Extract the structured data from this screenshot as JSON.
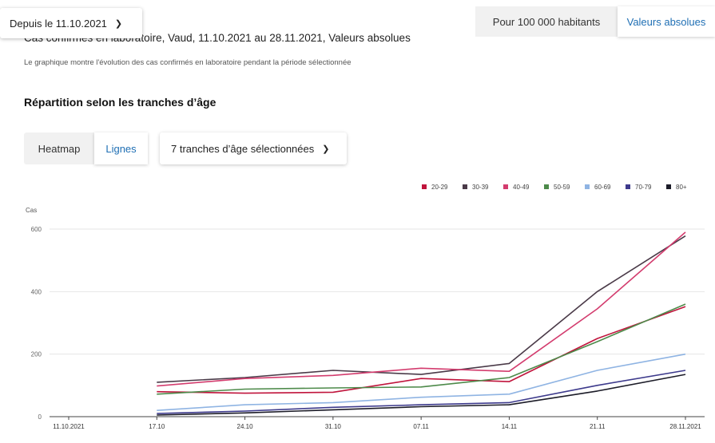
{
  "filters": {
    "date_filter_label": "Depuis le 11.10.2021",
    "mode_per100k_label": "Pour 100 000 habitants",
    "mode_absolute_label": "Valeurs absolues"
  },
  "chart_header": {
    "title": "Cas confirmés en laboratoire, Vaud, 11.10.2021 au 28.11.2021, Valeurs absolues",
    "description": "Le graphique montre l'évolution des cas confirmés en laboratoire pendant la période sélectionnée",
    "section_heading": "Répartition selon les tranches d’âge"
  },
  "view_controls": {
    "heatmap_label": "Heatmap",
    "lines_label": "Lignes",
    "age_select_label": "7 tranches d’âge sélectionnées"
  },
  "icons": {
    "date_dropdown": "chevron-down-icon",
    "age_dropdown": "chevron-down-icon"
  },
  "colors": {
    "accent": "#1f6fb4",
    "grid": "#e6e6e6",
    "axis": "#666666"
  },
  "chart_data": {
    "type": "line",
    "ylabel": "Cas",
    "xlabel": "",
    "ylim": [
      0,
      600
    ],
    "yticks": [
      0,
      200,
      400,
      600
    ],
    "x": [
      "11.10.2021",
      "17.10",
      "24.10",
      "31.10",
      "07.11",
      "14.11",
      "21.11",
      "28.11.2021"
    ],
    "legend_position": "top-right",
    "grid": true,
    "series": [
      {
        "name": "20-29",
        "color": "#c0143c",
        "values": [
          null,
          80,
          75,
          78,
          122,
          112,
          250,
          352
        ]
      },
      {
        "name": "30-39",
        "color": "#4a3a48",
        "values": [
          null,
          110,
          125,
          148,
          135,
          170,
          400,
          578
        ]
      },
      {
        "name": "40-49",
        "color": "#d33c6e",
        "values": [
          null,
          98,
          122,
          132,
          155,
          145,
          345,
          590
        ]
      },
      {
        "name": "50-59",
        "color": "#4d8a4a",
        "values": [
          null,
          72,
          88,
          92,
          95,
          125,
          240,
          360
        ]
      },
      {
        "name": "60-69",
        "color": "#8fb4e3",
        "values": [
          null,
          20,
          38,
          45,
          62,
          72,
          148,
          200
        ]
      },
      {
        "name": "70-79",
        "color": "#3d3a8c",
        "values": [
          null,
          10,
          18,
          30,
          38,
          45,
          100,
          148
        ]
      },
      {
        "name": "80+",
        "color": "#1c1c28",
        "values": [
          null,
          5,
          12,
          22,
          32,
          38,
          82,
          135
        ]
      }
    ]
  }
}
